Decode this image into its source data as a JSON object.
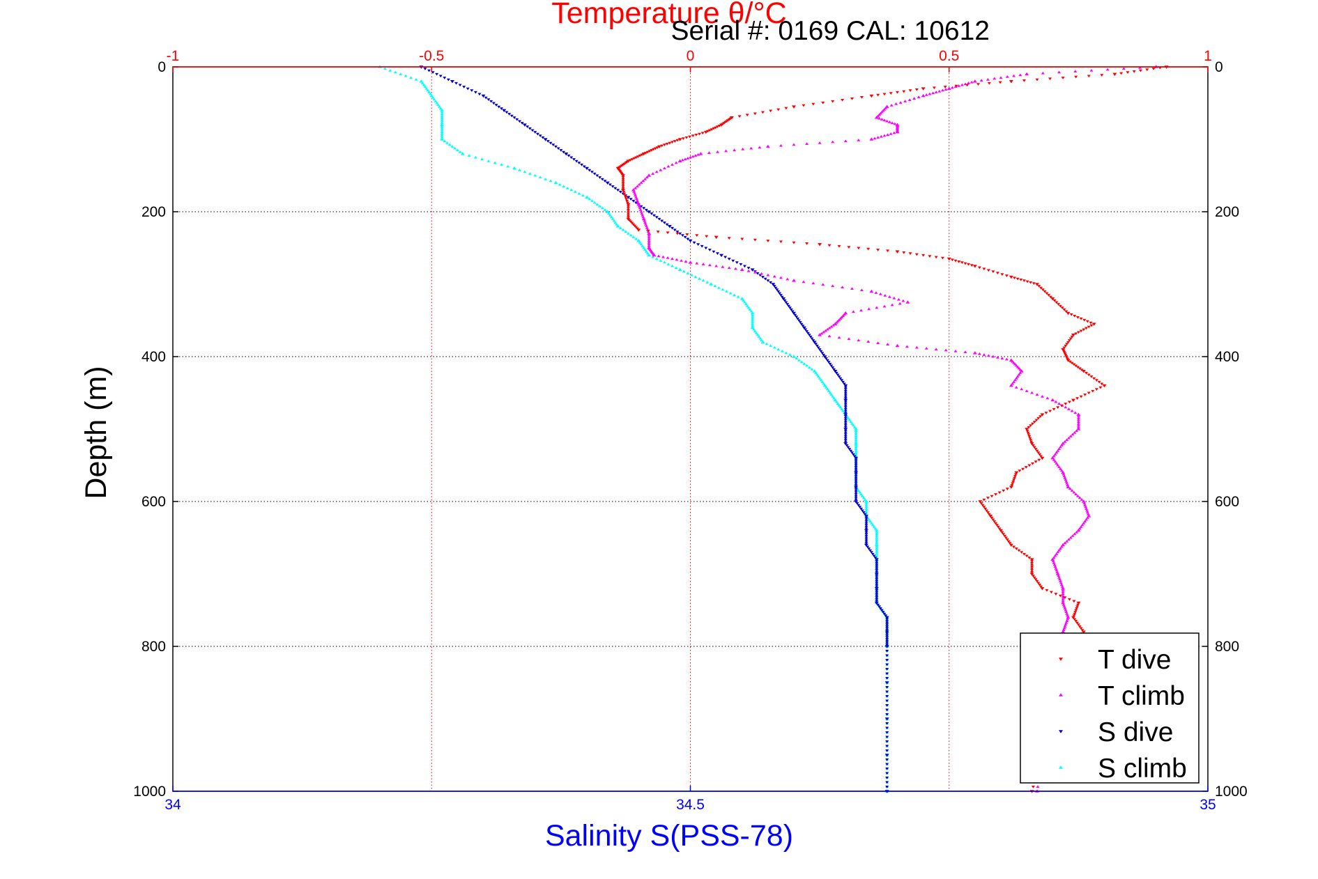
{
  "chart_data": {
    "type": "scatter",
    "title": "Temperature θ/°C",
    "subtitle": "Serial #: 0169 CAL: 10612",
    "xlabel_bottom": "Salinity S(PSS-78)",
    "ylabel": "Depth (m)",
    "depth_lim": [
      0,
      1000
    ],
    "depth_ticks": [
      "0",
      "200",
      "400",
      "600",
      "800",
      "1000"
    ],
    "temp_lim": [
      -1,
      1
    ],
    "temp_ticks": [
      "-1",
      "-0.5",
      "0",
      "0.5",
      "1"
    ],
    "sal_lim": [
      34,
      35
    ],
    "sal_ticks": [
      "34",
      "34.5",
      "35"
    ],
    "grid": true,
    "legend_position": "bottom-right",
    "colors": {
      "temperature_axis": "#ff0000",
      "salinity_axis": "#0000ff",
      "T dive": "#ff0000",
      "T climb": "#ff00ff",
      "S dive": "#0000cc",
      "S climb": "#00ffff"
    },
    "series": [
      {
        "name": "T dive",
        "axis": "temperature",
        "marker": "triangle-down",
        "depth": [
          0,
          10,
          20,
          30,
          40,
          55,
          70,
          80,
          90,
          100,
          110,
          120,
          130,
          140,
          150,
          170,
          190,
          210,
          225,
          235,
          245,
          255,
          265,
          275,
          290,
          300,
          320,
          340,
          355,
          370,
          390,
          405,
          420,
          440,
          460,
          480,
          500,
          520,
          540,
          560,
          580,
          600,
          620,
          640,
          660,
          680,
          700,
          720,
          740,
          760,
          780,
          800,
          850,
          900,
          950,
          1000
        ],
        "temp": [
          0.92,
          0.82,
          0.62,
          0.45,
          0.35,
          0.2,
          0.08,
          0.06,
          0.03,
          -0.02,
          -0.06,
          -0.09,
          -0.12,
          -0.14,
          -0.13,
          -0.13,
          -0.12,
          -0.12,
          -0.1,
          0.05,
          0.25,
          0.4,
          0.5,
          0.55,
          0.62,
          0.67,
          0.7,
          0.73,
          0.78,
          0.74,
          0.72,
          0.73,
          0.76,
          0.8,
          0.74,
          0.68,
          0.65,
          0.66,
          0.68,
          0.63,
          0.62,
          0.56,
          0.58,
          0.6,
          0.62,
          0.66,
          0.66,
          0.68,
          0.75,
          0.74,
          0.76,
          0.74,
          0.72,
          0.7,
          0.68,
          0.66
        ]
      },
      {
        "name": "T climb",
        "axis": "temperature",
        "marker": "triangle-up",
        "depth": [
          0,
          10,
          20,
          30,
          40,
          55,
          70,
          80,
          90,
          100,
          110,
          120,
          130,
          150,
          170,
          190,
          210,
          230,
          250,
          260,
          270,
          280,
          295,
          310,
          325,
          340,
          355,
          370,
          385,
          395,
          405,
          420,
          440,
          460,
          480,
          500,
          520,
          540,
          560,
          580,
          600,
          620,
          640,
          660,
          680,
          700,
          720,
          740,
          760,
          780,
          800,
          850,
          900,
          950,
          1000
        ],
        "temp": [
          0.9,
          0.65,
          0.55,
          0.5,
          0.45,
          0.38,
          0.36,
          0.4,
          0.4,
          0.35,
          0.15,
          0.02,
          -0.02,
          -0.08,
          -0.11,
          -0.1,
          -0.09,
          -0.08,
          -0.08,
          -0.07,
          0.0,
          0.1,
          0.2,
          0.35,
          0.42,
          0.3,
          0.28,
          0.25,
          0.4,
          0.55,
          0.62,
          0.64,
          0.62,
          0.7,
          0.75,
          0.75,
          0.72,
          0.7,
          0.72,
          0.73,
          0.76,
          0.77,
          0.75,
          0.72,
          0.7,
          0.71,
          0.72,
          0.72,
          0.73,
          0.72,
          0.71,
          0.7,
          0.69,
          0.68,
          0.67
        ]
      },
      {
        "name": "S dive",
        "axis": "salinity",
        "marker": "triangle-down",
        "depth": [
          0,
          20,
          40,
          60,
          80,
          100,
          120,
          140,
          160,
          180,
          200,
          220,
          240,
          260,
          280,
          300,
          320,
          340,
          360,
          380,
          400,
          420,
          440,
          460,
          480,
          500,
          520,
          540,
          560,
          580,
          600,
          620,
          640,
          660,
          680,
          700,
          720,
          740,
          760,
          780,
          800,
          850,
          900,
          950,
          1000
        ],
        "sal": [
          34.24,
          34.27,
          34.3,
          34.32,
          34.34,
          34.36,
          34.38,
          34.4,
          34.42,
          34.44,
          34.46,
          34.48,
          34.5,
          34.53,
          34.56,
          34.58,
          34.59,
          34.6,
          34.61,
          34.62,
          34.63,
          34.64,
          34.65,
          34.65,
          34.65,
          34.65,
          34.65,
          34.66,
          34.66,
          34.66,
          34.66,
          34.67,
          34.67,
          34.67,
          34.68,
          34.68,
          34.68,
          34.68,
          34.69,
          34.69,
          34.69,
          34.69,
          34.69,
          34.69,
          34.69
        ]
      },
      {
        "name": "S climb",
        "axis": "salinity",
        "marker": "triangle-up",
        "depth": [
          0,
          20,
          40,
          60,
          80,
          100,
          120,
          140,
          160,
          180,
          200,
          220,
          240,
          260,
          280,
          300,
          320,
          340,
          360,
          380,
          400,
          420,
          440,
          460,
          480,
          500,
          520,
          540,
          560,
          580,
          600,
          620,
          640,
          660,
          680,
          700,
          720,
          740,
          760,
          780,
          800,
          850,
          900,
          950,
          1000
        ],
        "sal": [
          34.2,
          34.24,
          34.25,
          34.26,
          34.26,
          34.26,
          34.28,
          34.33,
          34.37,
          34.4,
          34.42,
          34.43,
          34.45,
          34.46,
          34.49,
          34.52,
          34.55,
          34.56,
          34.56,
          34.57,
          34.6,
          34.62,
          34.63,
          34.64,
          34.65,
          34.66,
          34.66,
          34.66,
          34.66,
          34.66,
          34.67,
          34.67,
          34.68,
          34.68,
          34.68,
          34.68,
          34.68,
          34.68,
          34.69,
          34.69,
          34.69,
          34.69,
          34.69,
          34.69,
          34.69
        ]
      }
    ]
  }
}
